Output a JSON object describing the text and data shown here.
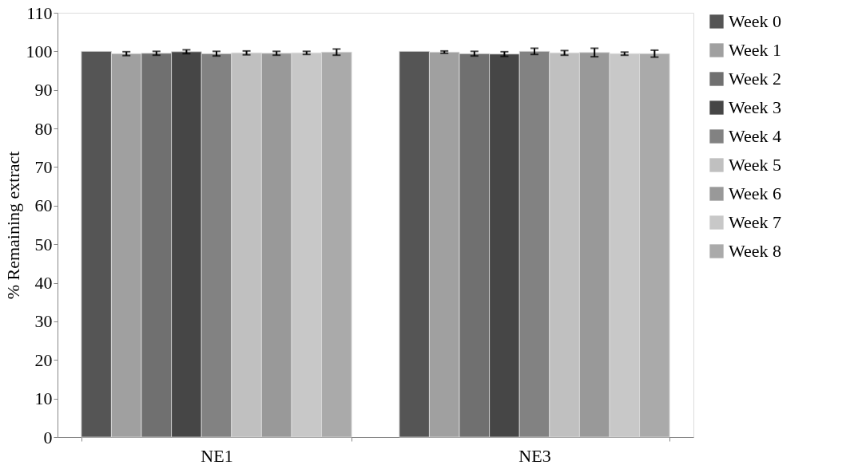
{
  "chart_data": {
    "type": "bar",
    "ylabel": "% Remaining extract",
    "categories": [
      "NE1",
      "NE3"
    ],
    "series": [
      {
        "name": "Week 0",
        "color": "#555555",
        "values": [
          100,
          100
        ],
        "errors": [
          null,
          null
        ]
      },
      {
        "name": "Week 1",
        "color": "#a0a0a0",
        "values": [
          99.4,
          99.8
        ],
        "errors": [
          0.5,
          0.3
        ]
      },
      {
        "name": "Week 2",
        "color": "#707070",
        "values": [
          99.5,
          99.4
        ],
        "errors": [
          0.5,
          0.6
        ]
      },
      {
        "name": "Week 3",
        "color": "#464646",
        "values": [
          99.9,
          99.3
        ],
        "errors": [
          0.5,
          0.6
        ]
      },
      {
        "name": "Week 4",
        "color": "#828282",
        "values": [
          99.4,
          100
        ],
        "errors": [
          0.6,
          0.8
        ]
      },
      {
        "name": "Week 5",
        "color": "#c0c0c0",
        "values": [
          99.6,
          99.6
        ],
        "errors": [
          0.5,
          0.6
        ]
      },
      {
        "name": "Week 6",
        "color": "#999999",
        "values": [
          99.5,
          99.7
        ],
        "errors": [
          0.5,
          1.1
        ]
      },
      {
        "name": "Week 7",
        "color": "#c8c8c8",
        "values": [
          99.6,
          99.4
        ],
        "errors": [
          0.4,
          0.4
        ]
      },
      {
        "name": "Week 8",
        "color": "#aaaaaa",
        "values": [
          99.8,
          99.4
        ],
        "errors": [
          0.8,
          0.9
        ]
      }
    ],
    "ylim": [
      0,
      110
    ],
    "yticks": [
      0,
      10,
      20,
      30,
      40,
      50,
      60,
      70,
      80,
      90,
      100,
      110
    ],
    "grid": false,
    "legend": "right"
  }
}
